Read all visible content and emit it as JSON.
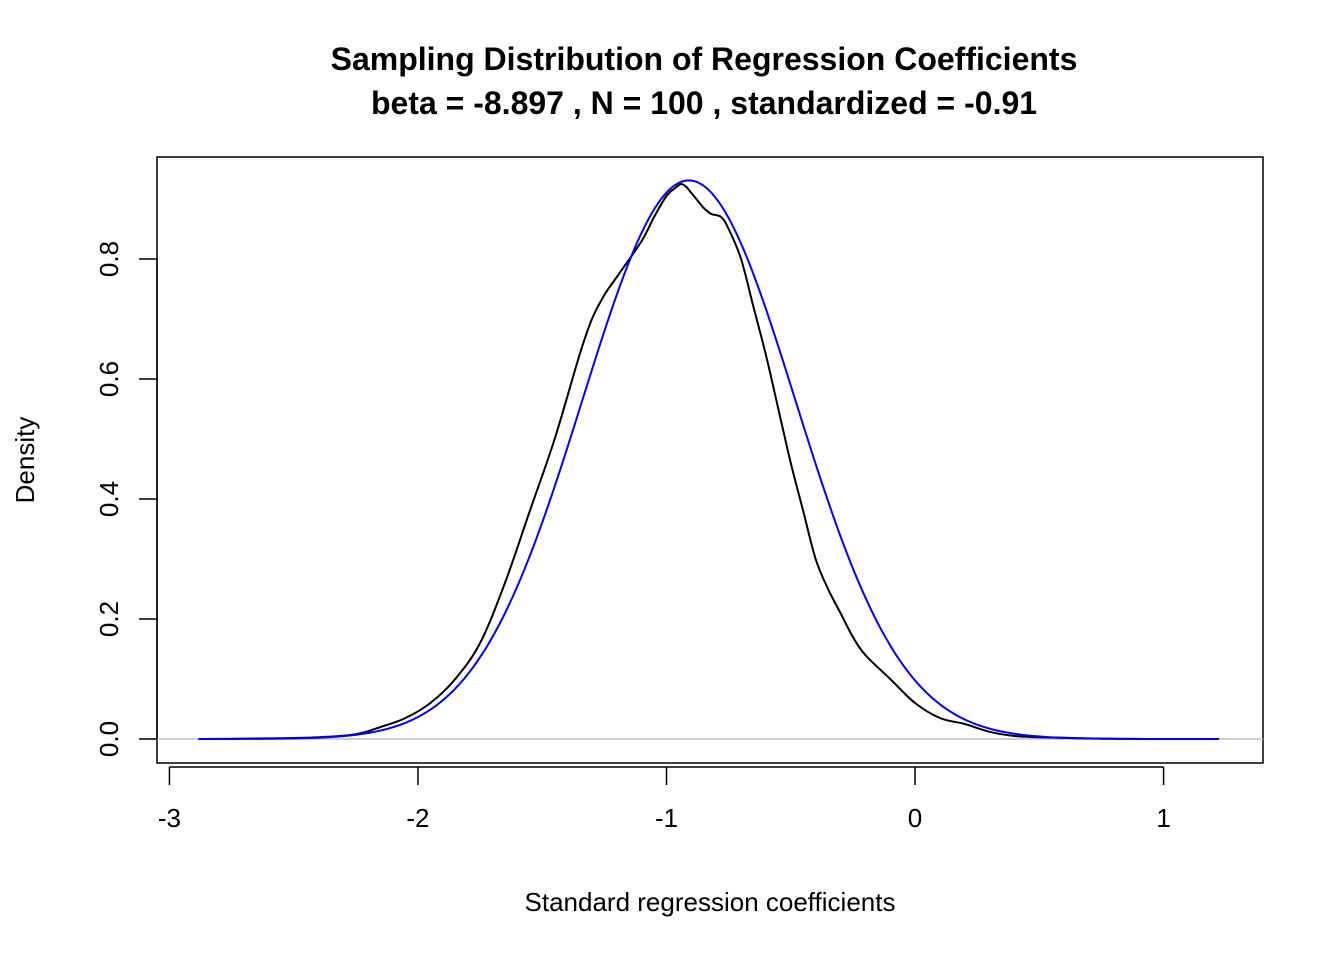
{
  "chart_data": {
    "type": "line",
    "title": "Sampling Distribution of Regression Coefficients",
    "subtitle": "beta =  -8.897 , N =  100 , standardized =  -0.91",
    "xlabel": "Standard regression coefficients",
    "ylabel": "Density",
    "xlim": [
      -3.05,
      1.4
    ],
    "ylim": [
      -0.04,
      0.97
    ],
    "xticks": [
      -3,
      -2,
      -1,
      0,
      1
    ],
    "xtick_labels": [
      "-3",
      "-2",
      "-1",
      "0",
      "1"
    ],
    "yticks": [
      0.0,
      0.2,
      0.4,
      0.6,
      0.8
    ],
    "ytick_labels": [
      "0.0",
      "0.2",
      "0.4",
      "0.6",
      "0.8"
    ],
    "grid": false,
    "baseline": {
      "y": 0,
      "color": "#bebebe"
    },
    "series": [
      {
        "color": "#000000",
        "x": [
          -2.88,
          -2.6,
          -2.4,
          -2.25,
          -2.15,
          -2.05,
          -1.95,
          -1.85,
          -1.75,
          -1.65,
          -1.55,
          -1.45,
          -1.35,
          -1.3,
          -1.25,
          -1.2,
          -1.1,
          -1.05,
          -1.0,
          -0.96,
          -0.94,
          -0.92,
          -0.9,
          -0.88,
          -0.85,
          -0.82,
          -0.78,
          -0.75,
          -0.7,
          -0.65,
          -0.6,
          -0.55,
          -0.5,
          -0.45,
          -0.4,
          -0.35,
          -0.3,
          -0.25,
          -0.2,
          -0.1,
          0.0,
          0.1,
          0.2,
          0.3,
          0.4,
          0.5,
          0.7,
          0.9,
          1.22
        ],
        "values": [
          0.0,
          0.001,
          0.003,
          0.008,
          0.02,
          0.035,
          0.06,
          0.1,
          0.16,
          0.26,
          0.38,
          0.5,
          0.64,
          0.7,
          0.74,
          0.77,
          0.83,
          0.87,
          0.905,
          0.92,
          0.925,
          0.92,
          0.91,
          0.9,
          0.885,
          0.875,
          0.87,
          0.85,
          0.8,
          0.72,
          0.64,
          0.55,
          0.46,
          0.38,
          0.3,
          0.25,
          0.21,
          0.17,
          0.14,
          0.1,
          0.06,
          0.035,
          0.025,
          0.012,
          0.005,
          0.003,
          0.001,
          0.0,
          0.0
        ]
      },
      {
        "color": "#0000ff",
        "normal": {
          "mean": -0.91,
          "sd": 0.4285
        },
        "x_range": [
          -2.88,
          1.22
        ]
      }
    ]
  }
}
